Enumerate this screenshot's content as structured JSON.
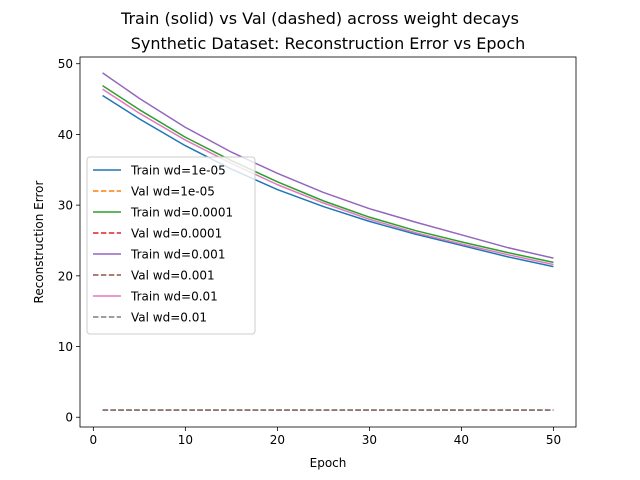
{
  "chart_data": {
    "type": "line",
    "suptitle": "Train (solid) vs Val (dashed) across weight decays",
    "title": "Synthetic Dataset: Reconstruction Error vs Epoch",
    "xlabel": "Epoch",
    "ylabel": "Reconstruction Error",
    "xlim": [
      -1.45,
      52.45
    ],
    "ylim": [
      -1.38,
      50.95
    ],
    "xticks": [
      0,
      10,
      20,
      30,
      40,
      50
    ],
    "yticks": [
      0,
      10,
      20,
      30,
      40,
      50
    ],
    "grid": false,
    "legend_position": "center-left",
    "x": [
      1,
      5,
      10,
      15,
      20,
      25,
      30,
      35,
      40,
      45,
      50
    ],
    "series": [
      {
        "name": "Train wd=1e-05",
        "style": "solid",
        "color": "#1f77b4",
        "values": [
          45.5,
          42.2,
          38.4,
          35.1,
          32.2,
          29.8,
          27.7,
          25.9,
          24.3,
          22.7,
          21.3
        ]
      },
      {
        "name": "Val wd=1e-05",
        "style": "dashed",
        "color": "#ff7f0e",
        "values": [
          1.0,
          1.0,
          1.0,
          1.0,
          1.0,
          1.0,
          1.0,
          1.0,
          1.0,
          1.0,
          1.0
        ]
      },
      {
        "name": "Train wd=0.0001",
        "style": "solid",
        "color": "#2ca02c",
        "values": [
          46.9,
          43.5,
          39.6,
          36.3,
          33.3,
          30.6,
          28.3,
          26.4,
          24.8,
          23.3,
          21.9
        ]
      },
      {
        "name": "Val wd=0.0001",
        "style": "dashed",
        "color": "#d62728",
        "values": [
          1.0,
          1.0,
          1.0,
          1.0,
          1.0,
          1.0,
          1.0,
          1.0,
          1.0,
          1.0,
          1.0
        ]
      },
      {
        "name": "Train wd=0.001",
        "style": "solid",
        "color": "#9467bd",
        "values": [
          48.7,
          45.1,
          41.0,
          37.5,
          34.5,
          31.8,
          29.5,
          27.6,
          25.8,
          24.0,
          22.5
        ]
      },
      {
        "name": "Val wd=0.001",
        "style": "dashed",
        "color": "#8c564b",
        "values": [
          1.0,
          1.0,
          1.0,
          1.0,
          1.0,
          1.0,
          1.0,
          1.0,
          1.0,
          1.0,
          1.0
        ]
      },
      {
        "name": "Train wd=0.01",
        "style": "solid",
        "color": "#e377c2",
        "values": [
          46.4,
          43.0,
          39.2,
          35.9,
          32.9,
          30.3,
          28.0,
          26.1,
          24.5,
          23.0,
          21.6
        ]
      },
      {
        "name": "Val wd=0.01",
        "style": "dashed",
        "color": "#7f7f7f",
        "values": [
          1.0,
          1.0,
          1.0,
          1.0,
          1.0,
          1.0,
          1.0,
          1.0,
          1.0,
          1.0,
          1.0
        ]
      }
    ]
  }
}
